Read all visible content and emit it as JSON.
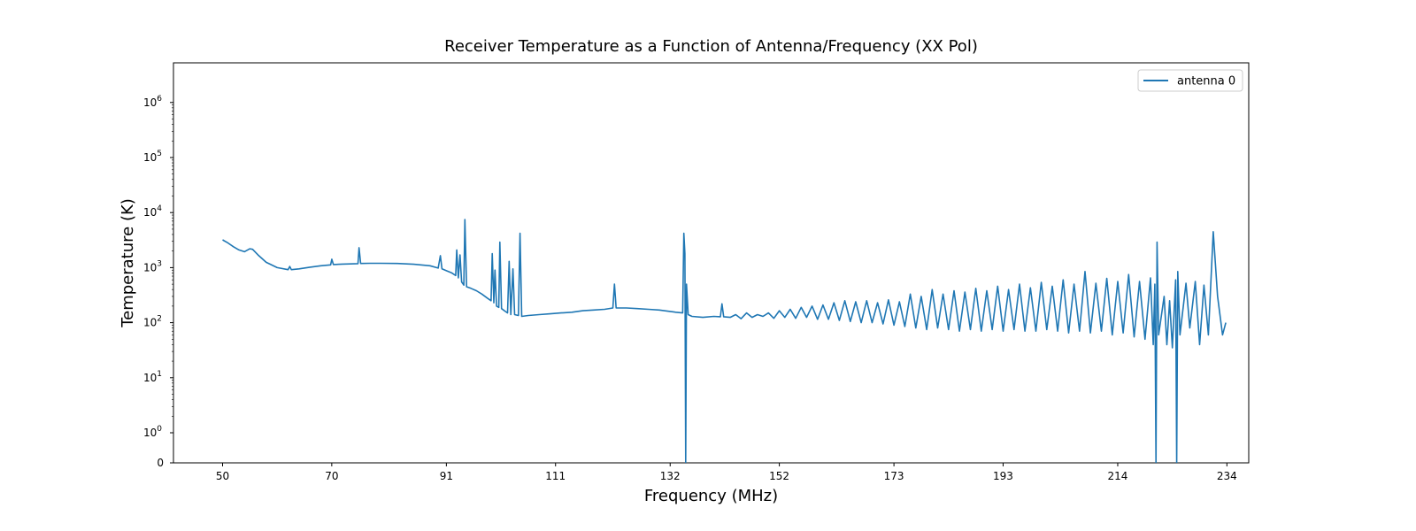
{
  "chart_data": {
    "type": "line",
    "title": "Receiver Temperature as a Function of Antenna/Frequency (XX Pol)",
    "xlabel": "Frequency (MHz)",
    "ylabel": "Temperature (K)",
    "x_ticks": [
      "50",
      "70",
      "91",
      "111",
      "132",
      "152",
      "173",
      "193",
      "214",
      "234"
    ],
    "y_ticks": [
      {
        "base": "0",
        "exp": ""
      },
      {
        "base": "10",
        "exp": "0"
      },
      {
        "base": "10",
        "exp": "1"
      },
      {
        "base": "10",
        "exp": "2"
      },
      {
        "base": "10",
        "exp": "3"
      },
      {
        "base": "10",
        "exp": "4"
      },
      {
        "base": "10",
        "exp": "5"
      },
      {
        "base": "10",
        "exp": "6"
      }
    ],
    "y_scale": "symlog",
    "xlim": [
      41,
      238
    ],
    "ylim": [
      0,
      3000000
    ],
    "legend_position": "top-right",
    "grid": false,
    "series": [
      {
        "name": "antenna 0",
        "color": "#1f77b4",
        "points": [
          [
            50,
            3200
          ],
          [
            51,
            2800
          ],
          [
            52,
            2400
          ],
          [
            53,
            2100
          ],
          [
            54,
            1950
          ],
          [
            55,
            2200
          ],
          [
            55.5,
            2150
          ],
          [
            56.5,
            1700
          ],
          [
            58,
            1250
          ],
          [
            60,
            1000
          ],
          [
            62,
            920
          ],
          [
            62.3,
            1050
          ],
          [
            62.6,
            920
          ],
          [
            64,
            950
          ],
          [
            66,
            1020
          ],
          [
            68,
            1080
          ],
          [
            69.8,
            1120
          ],
          [
            70,
            1420
          ],
          [
            70.3,
            1140
          ],
          [
            72,
            1160
          ],
          [
            74.8,
            1180
          ],
          [
            75,
            2300
          ],
          [
            75.3,
            1190
          ],
          [
            77,
            1200
          ],
          [
            79,
            1200
          ],
          [
            82,
            1190
          ],
          [
            85,
            1150
          ],
          [
            88,
            1080
          ],
          [
            89.5,
            980
          ],
          [
            89.9,
            1650
          ],
          [
            90.2,
            950
          ],
          [
            91,
            880
          ],
          [
            92,
            800
          ],
          [
            92.7,
            720
          ],
          [
            92.9,
            2100
          ],
          [
            93.2,
            650
          ],
          [
            93.5,
            1700
          ],
          [
            93.8,
            550
          ],
          [
            94.2,
            480
          ],
          [
            94.4,
            7500
          ],
          [
            94.7,
            450
          ],
          [
            95.5,
            420
          ],
          [
            96.5,
            380
          ],
          [
            97.5,
            330
          ],
          [
            98.5,
            280
          ],
          [
            99.2,
            250
          ],
          [
            99.4,
            1800
          ],
          [
            99.7,
            230
          ],
          [
            99.9,
            900
          ],
          [
            100.2,
            200
          ],
          [
            100.6,
            190
          ],
          [
            100.8,
            2900
          ],
          [
            101.1,
            180
          ],
          [
            101.8,
            160
          ],
          [
            102.2,
            150
          ],
          [
            102.5,
            1300
          ],
          [
            102.8,
            140
          ],
          [
            103.2,
            950
          ],
          [
            103.5,
            140
          ],
          [
            104.2,
            135
          ],
          [
            104.5,
            4200
          ],
          [
            104.8,
            130
          ],
          [
            106,
            135
          ],
          [
            108,
            140
          ],
          [
            110,
            145
          ],
          [
            112,
            150
          ],
          [
            114,
            155
          ],
          [
            116,
            165
          ],
          [
            118,
            170
          ],
          [
            120,
            175
          ],
          [
            121.5,
            185
          ],
          [
            121.8,
            500
          ],
          [
            122.1,
            185
          ],
          [
            124,
            185
          ],
          [
            126,
            180
          ],
          [
            128,
            175
          ],
          [
            130,
            170
          ],
          [
            132,
            160
          ],
          [
            133,
            155
          ],
          [
            134.3,
            150
          ],
          [
            134.5,
            4200
          ],
          [
            134.7,
            1800
          ],
          [
            134.85,
            0
          ],
          [
            135.0,
            500
          ],
          [
            135.3,
            140
          ],
          [
            136,
            130
          ],
          [
            138,
            125
          ],
          [
            140,
            130
          ],
          [
            141.2,
            128
          ],
          [
            141.5,
            220
          ],
          [
            141.8,
            128
          ],
          [
            143,
            125
          ],
          [
            144,
            140
          ],
          [
            145,
            118
          ],
          [
            146,
            150
          ],
          [
            147,
            125
          ],
          [
            148,
            140
          ],
          [
            149,
            130
          ],
          [
            150,
            150
          ],
          [
            151,
            120
          ],
          [
            152,
            165
          ],
          [
            153,
            125
          ],
          [
            154,
            175
          ],
          [
            155,
            120
          ],
          [
            156,
            190
          ],
          [
            157,
            125
          ],
          [
            158,
            200
          ],
          [
            159,
            115
          ],
          [
            160,
            210
          ],
          [
            161,
            115
          ],
          [
            162,
            230
          ],
          [
            163,
            110
          ],
          [
            164,
            250
          ],
          [
            165,
            105
          ],
          [
            166,
            240
          ],
          [
            167,
            100
          ],
          [
            168,
            250
          ],
          [
            169,
            100
          ],
          [
            170,
            230
          ],
          [
            171,
            95
          ],
          [
            172,
            260
          ],
          [
            173,
            90
          ],
          [
            174,
            240
          ],
          [
            175,
            85
          ],
          [
            176,
            330
          ],
          [
            177,
            80
          ],
          [
            178,
            300
          ],
          [
            179,
            75
          ],
          [
            180,
            400
          ],
          [
            181,
            80
          ],
          [
            182,
            330
          ],
          [
            183,
            75
          ],
          [
            184,
            380
          ],
          [
            185,
            70
          ],
          [
            186,
            360
          ],
          [
            187,
            75
          ],
          [
            188,
            420
          ],
          [
            189,
            70
          ],
          [
            190,
            380
          ],
          [
            191,
            75
          ],
          [
            192,
            460
          ],
          [
            193,
            70
          ],
          [
            194,
            400
          ],
          [
            195,
            75
          ],
          [
            196,
            500
          ],
          [
            197,
            70
          ],
          [
            198,
            430
          ],
          [
            199,
            70
          ],
          [
            200,
            540
          ],
          [
            201,
            75
          ],
          [
            202,
            460
          ],
          [
            203,
            70
          ],
          [
            204,
            600
          ],
          [
            205,
            65
          ],
          [
            206,
            500
          ],
          [
            207,
            70
          ],
          [
            208,
            850
          ],
          [
            209,
            65
          ],
          [
            210,
            520
          ],
          [
            211,
            70
          ],
          [
            212,
            640
          ],
          [
            213,
            60
          ],
          [
            214,
            560
          ],
          [
            215,
            65
          ],
          [
            216,
            750
          ],
          [
            217,
            55
          ],
          [
            218,
            560
          ],
          [
            219,
            50
          ],
          [
            220,
            650
          ],
          [
            220.5,
            40
          ],
          [
            220.8,
            500
          ],
          [
            221.0,
            0
          ],
          [
            221.2,
            2900
          ],
          [
            221.5,
            60
          ],
          [
            222.5,
            300
          ],
          [
            223,
            40
          ],
          [
            223.5,
            250
          ],
          [
            224,
            35
          ],
          [
            224.6,
            600
          ],
          [
            224.8,
            0
          ],
          [
            225.0,
            850
          ],
          [
            225.4,
            60
          ],
          [
            226.5,
            520
          ],
          [
            227.2,
            80
          ],
          [
            228.2,
            560
          ],
          [
            229,
            40
          ],
          [
            229.8,
            480
          ],
          [
            230.6,
            60
          ],
          [
            231.5,
            4500
          ],
          [
            232.3,
            300
          ],
          [
            233.2,
            60
          ],
          [
            233.8,
            100
          ]
        ]
      }
    ]
  }
}
